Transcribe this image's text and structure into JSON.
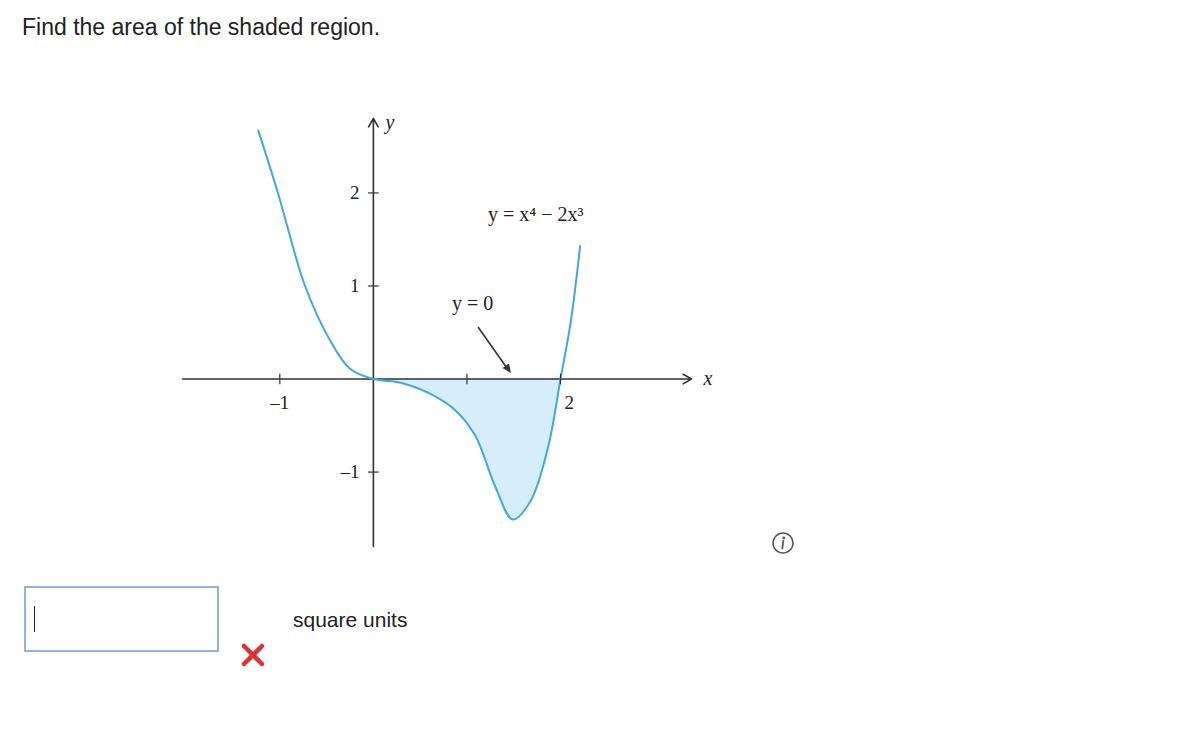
{
  "chart_data": {
    "type": "line",
    "title": "Find the area of the shaded region.",
    "xlabel": "x",
    "ylabel": "y",
    "x": [
      -1.23,
      -1.02,
      -0.73,
      -0.46,
      -0.25,
      0,
      0.29,
      0.61,
      0.88,
      1.09,
      1.3,
      1.49,
      1.68,
      1.87,
      2,
      2.11,
      2.21
    ],
    "values": [
      2.67,
      2,
      1,
      0.41,
      0.11,
      0,
      -0.04,
      -0.16,
      -0.34,
      -0.61,
      -1.15,
      -1.51,
      -1.31,
      -0.72,
      0,
      0.62,
      1.43
    ],
    "shaded_x": [
      0,
      2
    ],
    "color": "#3fa9e0",
    "xlim": [
      -2.04,
      3.4
    ],
    "ylim": [
      -1.8,
      2.8
    ],
    "xticks": [
      {
        "value": -1,
        "label": "–1"
      },
      {
        "value": 1,
        "label": null
      },
      2
    ],
    "yticks": [
      2,
      1,
      {
        "value": -1,
        "label": "–1"
      }
    ],
    "grid": false,
    "annotations": [
      "y = x⁴ − 2x³",
      "y = 0"
    ]
  },
  "answer": {
    "unit": "square units"
  }
}
